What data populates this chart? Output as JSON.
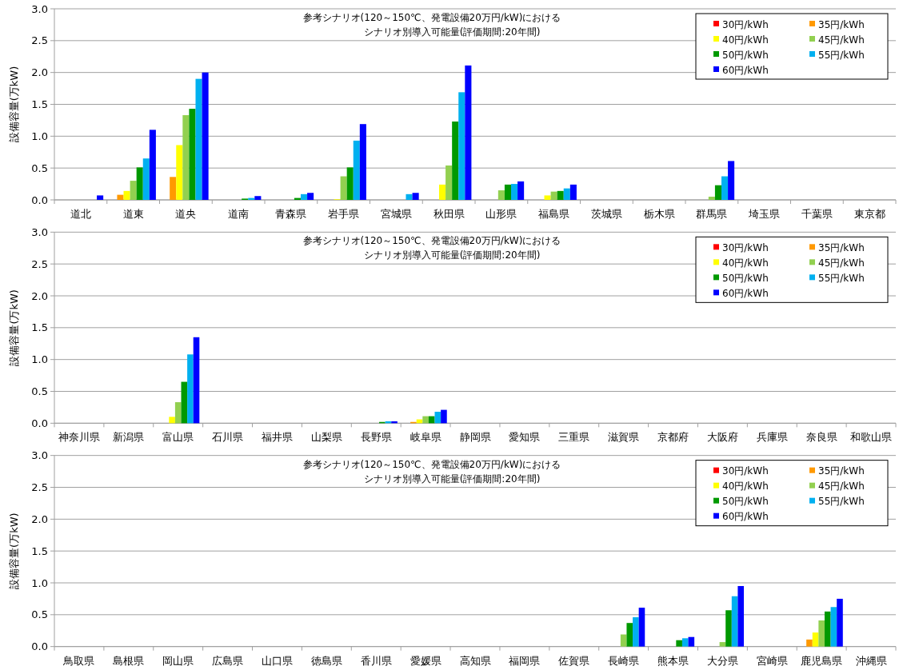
{
  "chart_data": [
    {
      "type": "bar",
      "title": "参考シナリオ(120～150℃、発電設備20万円/kW)における",
      "subtitle": "シナリオ別導入可能量(評価期間:20年間)",
      "ylabel": "設備容量(万kW)",
      "categories": [
        "道北",
        "道東",
        "道央",
        "道南",
        "青森県",
        "岩手県",
        "宮城県",
        "秋田県",
        "山形県",
        "福島県",
        "茨城県",
        "栃木県",
        "群馬県",
        "埼玉県",
        "千葉県",
        "東京都"
      ],
      "series": [
        {
          "name": "30円/kWh",
          "color": "#ff0000",
          "values": [
            0,
            0,
            0,
            0,
            0,
            0,
            0,
            0,
            0,
            0,
            0,
            0,
            0,
            0,
            0,
            0
          ]
        },
        {
          "name": "35円/kWh",
          "color": "#ff9900",
          "values": [
            0,
            0.08,
            0.36,
            0,
            0,
            0,
            0,
            0,
            0,
            0,
            0,
            0,
            0,
            0,
            0,
            0
          ]
        },
        {
          "name": "40円/kWh",
          "color": "#ffff00",
          "values": [
            0,
            0.14,
            0.86,
            0,
            0,
            0.01,
            0,
            0.24,
            0,
            0.07,
            0,
            0,
            0,
            0,
            0,
            0
          ]
        },
        {
          "name": "45円/kWh",
          "color": "#92d050",
          "values": [
            0,
            0.3,
            1.33,
            0,
            0,
            0.37,
            0,
            0.54,
            0.15,
            0.13,
            0,
            0,
            0.05,
            0,
            0,
            0
          ]
        },
        {
          "name": "50円/kWh",
          "color": "#009900",
          "values": [
            0,
            0.51,
            1.43,
            0.02,
            0.03,
            0.51,
            0,
            1.23,
            0.24,
            0.14,
            0,
            0,
            0.23,
            0,
            0,
            0
          ]
        },
        {
          "name": "55円/kWh",
          "color": "#00b0f0",
          "values": [
            0,
            0.65,
            1.9,
            0.03,
            0.09,
            0.93,
            0.09,
            1.69,
            0.25,
            0.18,
            0,
            0,
            0.37,
            0,
            0,
            0
          ]
        },
        {
          "name": "60円/kWh",
          "color": "#0000ff",
          "values": [
            0.07,
            1.1,
            2.0,
            0.06,
            0.11,
            1.19,
            0.11,
            2.11,
            0.29,
            0.24,
            0,
            0,
            0.61,
            0,
            0,
            0
          ]
        }
      ],
      "ylim": [
        0,
        3
      ],
      "yticks": [
        {
          "value": 0,
          "label": "0.0"
        },
        {
          "value": 0.5,
          "label": "0.5"
        },
        {
          "value": 1,
          "label": "1.0"
        },
        {
          "value": 1.5,
          "label": "1.5"
        },
        {
          "value": 2,
          "label": "2.0"
        },
        {
          "value": 2.5,
          "label": "2.5"
        },
        {
          "value": 3,
          "label": "3.0"
        }
      ],
      "grid": "y",
      "legend": "top right"
    },
    {
      "type": "bar",
      "title": "参考シナリオ(120～150℃、発電設備20万円/kW)における",
      "subtitle": "シナリオ別導入可能量(評価期間:20年間)",
      "ylabel": "設備容量(万kW)",
      "categories": [
        "神奈川県",
        "新潟県",
        "富山県",
        "石川県",
        "福井県",
        "山梨県",
        "長野県",
        "岐阜県",
        "静岡県",
        "愛知県",
        "三重県",
        "滋賀県",
        "京都府",
        "大阪府",
        "兵庫県",
        "奈良県",
        "和歌山県"
      ],
      "series": [
        {
          "name": "30円/kWh",
          "color": "#ff0000",
          "values": [
            0,
            0,
            0,
            0,
            0,
            0,
            0,
            0,
            0,
            0,
            0,
            0,
            0,
            0,
            0,
            0,
            0
          ]
        },
        {
          "name": "35円/kWh",
          "color": "#ff9900",
          "values": [
            0,
            0,
            0,
            0,
            0,
            0,
            0,
            0.02,
            0,
            0,
            0,
            0,
            0,
            0,
            0,
            0,
            0
          ]
        },
        {
          "name": "40円/kWh",
          "color": "#ffff00",
          "values": [
            0,
            0,
            0.1,
            0,
            0,
            0,
            0,
            0.06,
            0,
            0,
            0,
            0,
            0,
            0,
            0,
            0,
            0
          ]
        },
        {
          "name": "45円/kWh",
          "color": "#92d050",
          "values": [
            0,
            0,
            0.33,
            0,
            0,
            0,
            0,
            0.11,
            0,
            0,
            0,
            0,
            0,
            0,
            0,
            0,
            0
          ]
        },
        {
          "name": "50円/kWh",
          "color": "#009900",
          "values": [
            0,
            0,
            0.65,
            0,
            0,
            0,
            0.02,
            0.11,
            0,
            0,
            0,
            0,
            0,
            0,
            0,
            0,
            0
          ]
        },
        {
          "name": "55円/kWh",
          "color": "#00b0f0",
          "values": [
            0,
            0,
            1.08,
            0,
            0,
            0,
            0.03,
            0.18,
            0,
            0,
            0,
            0,
            0,
            0,
            0,
            0,
            0
          ]
        },
        {
          "name": "60円/kWh",
          "color": "#0000ff",
          "values": [
            0,
            0,
            1.35,
            0,
            0,
            0,
            0.03,
            0.21,
            0,
            0,
            0,
            0,
            0,
            0,
            0,
            0,
            0
          ]
        }
      ],
      "ylim": [
        0,
        3
      ],
      "yticks": [
        {
          "value": 0,
          "label": "0.0"
        },
        {
          "value": 0.5,
          "label": "0.5"
        },
        {
          "value": 1,
          "label": "1.0"
        },
        {
          "value": 1.5,
          "label": "1.5"
        },
        {
          "value": 2,
          "label": "2.0"
        },
        {
          "value": 2.5,
          "label": "2.5"
        },
        {
          "value": 3,
          "label": "3.0"
        }
      ],
      "grid": "y",
      "legend": "top right"
    },
    {
      "type": "bar",
      "title": "参考シナリオ(120～150℃、発電設備20万円/kW)における",
      "subtitle": "シナリオ別導入可能量(評価期間:20年間)",
      "ylabel": "設備容量(万kW)",
      "categories": [
        "鳥取県",
        "島根県",
        "岡山県",
        "広島県",
        "山口県",
        "徳島県",
        "香川県",
        "愛媛県",
        "高知県",
        "福岡県",
        "佐賀県",
        "長崎県",
        "熊本県",
        "大分県",
        "宮崎県",
        "鹿児島県",
        "沖縄県"
      ],
      "series": [
        {
          "name": "30円/kWh",
          "color": "#ff0000",
          "values": [
            0,
            0,
            0,
            0,
            0,
            0,
            0,
            0,
            0,
            0,
            0,
            0,
            0,
            0,
            0,
            0,
            0
          ]
        },
        {
          "name": "35円/kWh",
          "color": "#ff9900",
          "values": [
            0,
            0,
            0,
            0,
            0,
            0,
            0,
            0,
            0,
            0,
            0,
            0,
            0,
            0,
            0,
            0.11,
            0
          ]
        },
        {
          "name": "40円/kWh",
          "color": "#ffff00",
          "values": [
            0,
            0,
            0,
            0,
            0,
            0,
            0,
            0,
            0,
            0,
            0,
            0,
            0,
            0,
            0,
            0.22,
            0
          ]
        },
        {
          "name": "45円/kWh",
          "color": "#92d050",
          "values": [
            0,
            0,
            0,
            0,
            0,
            0,
            0,
            0,
            0,
            0,
            0,
            0.19,
            0,
            0.07,
            0,
            0.41,
            0
          ]
        },
        {
          "name": "50円/kWh",
          "color": "#009900",
          "values": [
            0,
            0,
            0,
            0,
            0,
            0,
            0,
            0,
            0,
            0,
            0,
            0.37,
            0.1,
            0.57,
            0,
            0.55,
            0
          ]
        },
        {
          "name": "55円/kWh",
          "color": "#00b0f0",
          "values": [
            0,
            0,
            0,
            0,
            0,
            0,
            0,
            0,
            0,
            0,
            0,
            0.46,
            0.13,
            0.79,
            0,
            0.62,
            0
          ]
        },
        {
          "name": "60円/kWh",
          "color": "#0000ff",
          "values": [
            0,
            0,
            0,
            0,
            0,
            0,
            0,
            0,
            0,
            0,
            0,
            0.61,
            0.15,
            0.95,
            0,
            0.75,
            0
          ]
        }
      ],
      "ylim": [
        0,
        3
      ],
      "yticks": [
        {
          "value": 0,
          "label": "0.0"
        },
        {
          "value": 0.5,
          "label": "0.5"
        },
        {
          "value": 1,
          "label": "1.0"
        },
        {
          "value": 1.5,
          "label": "1.5"
        },
        {
          "value": 2,
          "label": "2.0"
        },
        {
          "value": 2.5,
          "label": "2.5"
        },
        {
          "value": 3,
          "label": "3.0"
        }
      ],
      "grid": "y",
      "legend": "top right"
    }
  ]
}
